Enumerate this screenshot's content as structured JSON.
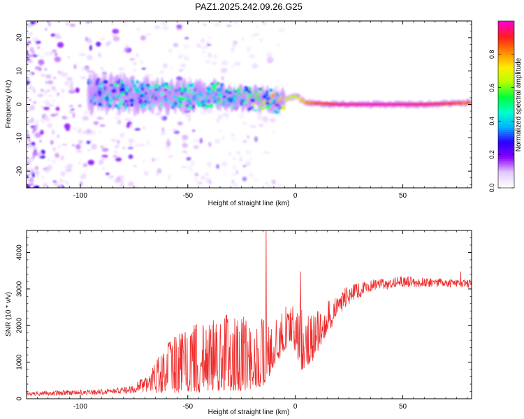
{
  "figure": {
    "title": "PAZ1.2025.242.09.26.G25"
  },
  "chart_data": [
    {
      "type": "heatmap",
      "title": "PAZ1.2025.242.09.26.G25",
      "xlabel": "Height of straight line (km)",
      "ylabel": "Frequency (Hz)",
      "xlim": [
        -125,
        82
      ],
      "ylim": [
        -25,
        25
      ],
      "xticks": [
        -100,
        -50,
        0,
        50
      ],
      "xtick_labels": [
        "-100",
        "-50",
        "0",
        "50"
      ],
      "yticks": [
        -20,
        -10,
        0,
        10,
        20
      ],
      "ytick_labels": [
        "-20",
        "-10",
        "0",
        "10",
        "20"
      ],
      "colorbar": {
        "label": "Normalized spectral amplitude",
        "range": [
          0,
          1
        ],
        "ticks": [
          0.0,
          0.2,
          0.4,
          0.6,
          0.8
        ],
        "tick_labels": [
          "0.0",
          "0.2",
          "0.4",
          "0.6",
          "0.8"
        ],
        "colormap": [
          "#ffffff",
          "#e4c8ff",
          "#8a00ff",
          "#2a00ff",
          "#00b4ff",
          "#00ffd0",
          "#00ff3c",
          "#b4ff00",
          "#ffee00",
          "#ff8a00",
          "#ff1e1e",
          "#ff00c8"
        ]
      },
      "ridge": [
        {
          "x": -95,
          "f": 3.5,
          "amp": 0.3
        },
        {
          "x": -80,
          "f": 3.0,
          "amp": 0.32
        },
        {
          "x": -65,
          "f": 2.5,
          "amp": 0.35
        },
        {
          "x": -50,
          "f": 2.5,
          "amp": 0.36
        },
        {
          "x": -35,
          "f": 3.0,
          "amp": 0.42
        },
        {
          "x": -25,
          "f": 2.0,
          "amp": 0.48
        },
        {
          "x": -15,
          "f": 1.5,
          "amp": 0.62
        },
        {
          "x": -8,
          "f": 0.8,
          "amp": 0.72
        },
        {
          "x": 0,
          "f": 2.5,
          "amp": 0.66
        },
        {
          "x": 5,
          "f": 0.5,
          "amp": 0.8
        },
        {
          "x": 20,
          "f": 0.0,
          "amp": 0.95
        },
        {
          "x": 40,
          "f": 0.0,
          "amp": 0.98
        },
        {
          "x": 60,
          "f": 0.0,
          "amp": 0.95
        },
        {
          "x": 82,
          "f": 0.5,
          "amp": 0.85
        }
      ]
    },
    {
      "type": "line",
      "xlabel": "Height of straight line (km)",
      "ylabel": "SNR (10 * v/v)",
      "xlim": [
        -125,
        82
      ],
      "ylim": [
        0,
        4600
      ],
      "xticks": [
        -100,
        -50,
        0,
        50
      ],
      "xtick_labels": [
        "-100",
        "-50",
        "0",
        "50"
      ],
      "yticks": [
        0,
        1000,
        2000,
        3000,
        4000
      ],
      "ytick_labels": [
        "0",
        "1000",
        "2000",
        "3000",
        "4000"
      ],
      "series": [
        {
          "name": "SNR",
          "color": "#ee2b2b",
          "envelope": [
            {
              "x": -125,
              "lo": 60,
              "hi": 200
            },
            {
              "x": -110,
              "lo": 60,
              "hi": 230
            },
            {
              "x": -95,
              "lo": 80,
              "hi": 250
            },
            {
              "x": -85,
              "lo": 90,
              "hi": 280
            },
            {
              "x": -75,
              "lo": 100,
              "hi": 400
            },
            {
              "x": -68,
              "lo": 110,
              "hi": 700
            },
            {
              "x": -62,
              "lo": 130,
              "hi": 1400
            },
            {
              "x": -55,
              "lo": 140,
              "hi": 1800
            },
            {
              "x": -45,
              "lo": 160,
              "hi": 2100
            },
            {
              "x": -35,
              "lo": 180,
              "hi": 2300
            },
            {
              "x": -25,
              "lo": 200,
              "hi": 2300
            },
            {
              "x": -18,
              "lo": 260,
              "hi": 2100
            },
            {
              "x": -14,
              "lo": 320,
              "hi": 2300
            },
            {
              "x": -10,
              "lo": 900,
              "hi": 2200
            },
            {
              "x": -6,
              "lo": 1200,
              "hi": 2400
            },
            {
              "x": -2,
              "lo": 1600,
              "hi": 2700
            },
            {
              "x": 3,
              "lo": 700,
              "hi": 2600
            },
            {
              "x": 8,
              "lo": 1000,
              "hi": 2400
            },
            {
              "x": 15,
              "lo": 1800,
              "hi": 2700
            },
            {
              "x": 25,
              "lo": 2500,
              "hi": 3100
            },
            {
              "x": 35,
              "lo": 2850,
              "hi": 3250
            },
            {
              "x": 50,
              "lo": 3000,
              "hi": 3350
            },
            {
              "x": 65,
              "lo": 3000,
              "hi": 3300
            },
            {
              "x": 82,
              "lo": 3000,
              "hi": 3250
            }
          ],
          "spikes": [
            {
              "x": -13.5,
              "y": 4580
            },
            {
              "x": 2.5,
              "y": 3480
            },
            {
              "x": 77,
              "y": 3480
            }
          ]
        }
      ]
    }
  ]
}
